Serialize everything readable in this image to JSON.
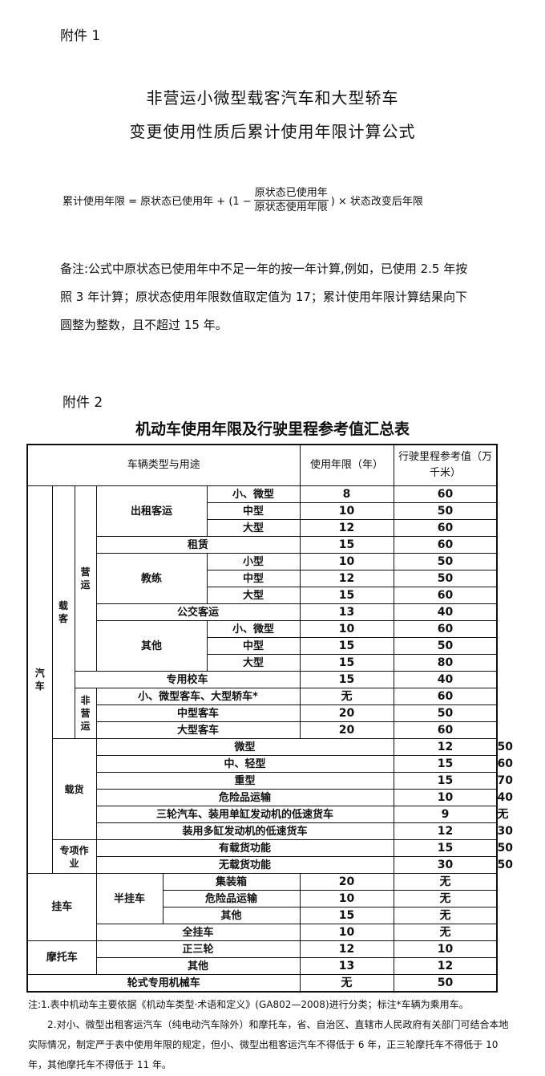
{
  "attachment1": "附件 1",
  "title_line1": "非营运小微型载客汽车和大型轿车",
  "title_line2": "变更使用性质后累计使用年限计算公式",
  "formula": {
    "lhs": "累计使用年限 = 原状态已使用年 + (1 −",
    "numerator": "原状态已使用年",
    "denominator": "原状态使用年限",
    "rhs": ") × 状态改变后年限"
  },
  "remark": "备注:公式中原状态已使用年中不足一年的按一年计算,例如，已使用 2.5 年按照 3 年计算；原状态使用年限数值取定值为 17；累计使用年限计算结果向下圆整为整数，且不超过 15 年。",
  "attachment2": "附件 2",
  "table_title": "机动车使用年限及行驶里程参考值汇总表",
  "table": {
    "header": [
      "车辆类型与用途",
      "使用年限（年）",
      "行驶里程参考值（万千米）"
    ],
    "rows": [
      [
        "汽车",
        "载客",
        "营运",
        "出租客运",
        "小、微型",
        "8",
        "60"
      ],
      [
        "中型",
        "10",
        "50"
      ],
      [
        "大型",
        "12",
        "60"
      ],
      [
        "租赁",
        "15",
        "60"
      ],
      [
        "教练",
        "小型",
        "10",
        "50"
      ],
      [
        "中型",
        "12",
        "50"
      ],
      [
        "大型",
        "15",
        "60"
      ],
      [
        "公交客运",
        "13",
        "40"
      ],
      [
        "其他",
        "小、微型",
        "10",
        "60"
      ],
      [
        "中型",
        "15",
        "50"
      ],
      [
        "大型",
        "15",
        "80"
      ],
      [
        "专用校车",
        "15",
        "40"
      ],
      [
        "非营运",
        "小、微型客车、大型轿车*",
        "无",
        "60"
      ],
      [
        "中型客车",
        "20",
        "50"
      ],
      [
        "大型客车",
        "20",
        "60"
      ],
      [
        "载货",
        "微型",
        "12",
        "50"
      ],
      [
        "中、轻型",
        "15",
        "60"
      ],
      [
        "重型",
        "15",
        "70"
      ],
      [
        "危险品运输",
        "10",
        "40"
      ],
      [
        "三轮汽车、装用单缸发动机的低速货车",
        "9",
        "无"
      ],
      [
        "装用多缸发动机的低速货车",
        "12",
        "30"
      ],
      [
        "专项作业",
        "有载货功能",
        "15",
        "50"
      ],
      [
        "无载货功能",
        "30",
        "50"
      ],
      [
        "挂车",
        "半挂车",
        "集装箱",
        "20",
        "无"
      ],
      [
        "危险品运输",
        "10",
        "无"
      ],
      [
        "其他",
        "15",
        "无"
      ],
      [
        "全挂车",
        "10",
        "无"
      ],
      [
        "摩托车",
        "正三轮",
        "12",
        "10"
      ],
      [
        "其他",
        "13",
        "12"
      ],
      [
        "轮式专用机械车",
        "无",
        "50"
      ]
    ]
  },
  "footnote1": "注:1.表中机动车主要依据《机动车类型·术语和定义》(GA802—2008)进行分类；标注*车辆为乘用车。",
  "footnote2": "2.对小、微型出租客运汽车（纯电动汽车除外）和摩托车，省、自治区、直辖市人民政府有关部门可结合本地实际情况，制定严于表中使用年限的规定，但小、微型出租客运汽车不得低于 6 年，正三轮摩托车不得低于 10 年，其他摩托车不得低于 11 年。"
}
